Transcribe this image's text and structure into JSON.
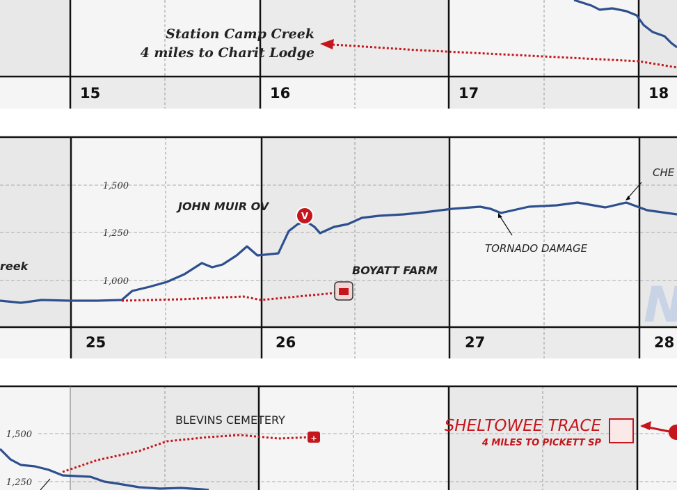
{
  "strips": [
    {
      "miles": [
        "15",
        "16",
        "17",
        "18"
      ],
      "labels": {
        "creek": "Station Camp Creek",
        "lodge": "4 miles to Charit Lodge"
      }
    },
    {
      "miles": [
        "25",
        "26",
        "27",
        "28"
      ],
      "elevation_ticks": [
        "1,500",
        "1,250",
        "1,000"
      ],
      "labels": {
        "creek": "reek",
        "overlook": "JOHN MUIR OV",
        "farm": "BOYATT FARM",
        "tornado": "TORNADO DAMAGE",
        "cut": "CHE",
        "marker": "V"
      }
    },
    {
      "elevation_ticks": [
        "1,500",
        "1,250"
      ],
      "labels": {
        "cemetery": "BLEVINS CEMETERY",
        "trace": "SHELTOWEE TRACE",
        "pickett": "4 MILES TO PICKETT SP"
      }
    }
  ]
}
